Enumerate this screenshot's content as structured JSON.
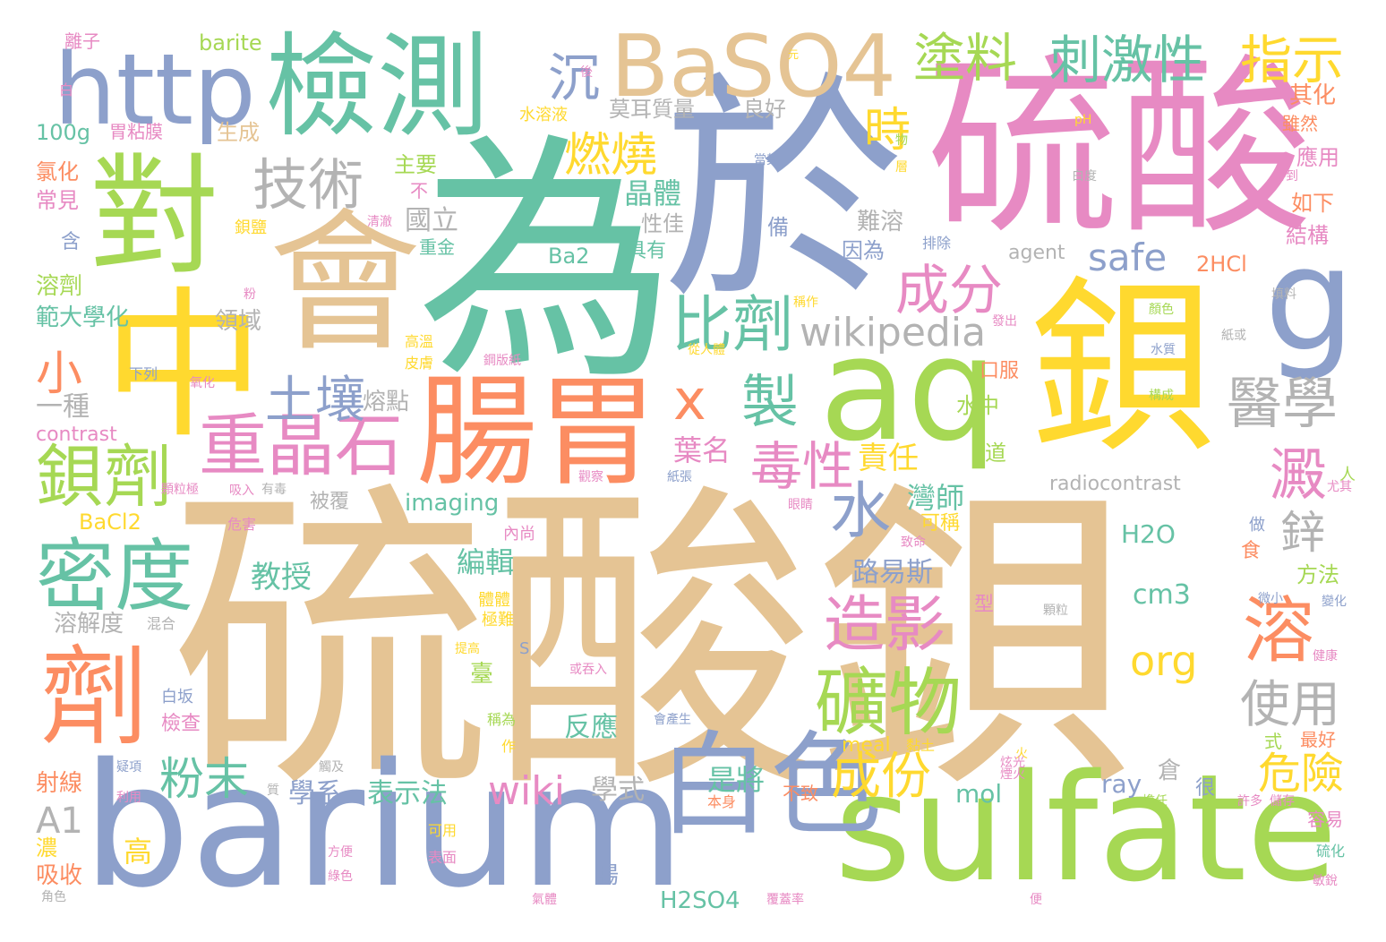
{
  "palette": {
    "tan": "#e5c494",
    "blue": "#8da0cb",
    "teal": "#66c2a5",
    "pink": "#e78ac3",
    "orange": "#fc8d62",
    "green": "#a6d854",
    "yellow": "#ffd92f",
    "gray": "#b3b3b3"
  },
  "words": [
    {
      "text": "硫酸鋇",
      "color": "tan"
    },
    {
      "text": "為",
      "color": "teal"
    },
    {
      "text": "於",
      "color": "blue"
    },
    {
      "text": "硫酸",
      "color": "pink"
    },
    {
      "text": "中",
      "color": "yellow"
    },
    {
      "text": "會",
      "color": "tan"
    },
    {
      "text": "對",
      "color": "green"
    },
    {
      "text": "鋇",
      "color": "yellow"
    },
    {
      "text": "barium",
      "color": "blue"
    },
    {
      "text": "sulfate",
      "color": "green"
    },
    {
      "text": "aq",
      "color": "green"
    },
    {
      "text": "g",
      "color": "blue"
    },
    {
      "text": "腸胃",
      "color": "orange"
    },
    {
      "text": "http",
      "color": "blue"
    },
    {
      "text": "檢測",
      "color": "teal"
    },
    {
      "text": "BaSO4",
      "color": "tan"
    },
    {
      "text": "白色",
      "color": "blue"
    },
    {
      "text": "劑",
      "color": "orange"
    },
    {
      "text": "密度",
      "color": "teal"
    },
    {
      "text": "技術",
      "color": "gray"
    },
    {
      "text": "重晶石",
      "color": "pink"
    },
    {
      "text": "鋇劑",
      "color": "green"
    },
    {
      "text": "土壤",
      "color": "blue"
    },
    {
      "text": "比劑",
      "color": "teal"
    },
    {
      "text": "沉",
      "color": "blue"
    },
    {
      "text": "塗料",
      "color": "green"
    },
    {
      "text": "刺激性",
      "color": "teal"
    },
    {
      "text": "指示",
      "color": "yellow"
    },
    {
      "text": "成分",
      "color": "pink"
    },
    {
      "text": "燃燒",
      "color": "yellow"
    },
    {
      "text": "時",
      "color": "yellow"
    },
    {
      "text": "醫學",
      "color": "gray"
    },
    {
      "text": "製",
      "color": "teal"
    },
    {
      "text": "x",
      "color": "orange"
    },
    {
      "text": "wikipedia",
      "color": "gray"
    },
    {
      "text": "毒性",
      "color": "pink"
    },
    {
      "text": "水",
      "color": "blue"
    },
    {
      "text": "造影",
      "color": "pink"
    },
    {
      "text": "礦物",
      "color": "green"
    },
    {
      "text": "澱",
      "color": "pink"
    },
    {
      "text": "溶",
      "color": "orange"
    },
    {
      "text": "鋅",
      "color": "gray"
    },
    {
      "text": "使用",
      "color": "gray"
    },
    {
      "text": "粉末",
      "color": "teal"
    },
    {
      "text": "成份",
      "color": "yellow"
    },
    {
      "text": "危險",
      "color": "yellow"
    },
    {
      "text": "wiki",
      "color": "pink"
    },
    {
      "text": "safe",
      "color": "blue"
    },
    {
      "text": "org",
      "color": "yellow"
    },
    {
      "text": "小",
      "color": "orange"
    },
    {
      "text": "晶體",
      "color": "teal"
    },
    {
      "text": "國立",
      "color": "gray"
    },
    {
      "text": "責任",
      "color": "yellow"
    },
    {
      "text": "葉名",
      "color": "pink"
    },
    {
      "text": "灣師",
      "color": "teal"
    },
    {
      "text": "教授",
      "color": "teal"
    },
    {
      "text": "編輯",
      "color": "teal"
    },
    {
      "text": "路易斯",
      "color": "blue"
    },
    {
      "text": "是將",
      "color": "teal"
    },
    {
      "text": "學式",
      "color": "gray"
    },
    {
      "text": "學系",
      "color": "blue"
    },
    {
      "text": "表示法",
      "color": "teal"
    },
    {
      "text": "反應",
      "color": "teal"
    },
    {
      "text": "cm3",
      "color": "teal"
    },
    {
      "text": "H2O",
      "color": "teal"
    },
    {
      "text": "radiocontrast",
      "color": "gray"
    },
    {
      "text": "imaging",
      "color": "teal"
    },
    {
      "text": "BaCl2",
      "color": "yellow"
    },
    {
      "text": "H2SO4",
      "color": "teal"
    },
    {
      "text": "A1",
      "color": "gray"
    },
    {
      "text": "ray",
      "color": "blue"
    },
    {
      "text": "mol",
      "color": "teal"
    },
    {
      "text": "meal",
      "color": "yellow"
    },
    {
      "text": "contrast",
      "color": "pink"
    },
    {
      "text": "2HCl",
      "color": "orange"
    },
    {
      "text": "agent",
      "color": "gray"
    },
    {
      "text": "Ba2",
      "color": "teal"
    },
    {
      "text": "100g",
      "color": "teal"
    },
    {
      "text": "barite",
      "color": "green"
    },
    {
      "text": "範大學化",
      "color": "teal"
    },
    {
      "text": "溶解度",
      "color": "gray"
    },
    {
      "text": "一種",
      "color": "gray"
    },
    {
      "text": "熔點",
      "color": "gray"
    },
    {
      "text": "領域",
      "color": "gray"
    },
    {
      "text": "良好",
      "color": "gray"
    },
    {
      "text": "莫耳質量",
      "color": "gray"
    },
    {
      "text": "生成",
      "color": "tan"
    },
    {
      "text": "主要",
      "color": "green"
    },
    {
      "text": "難溶",
      "color": "gray"
    },
    {
      "text": "因為",
      "color": "blue"
    },
    {
      "text": "性佳",
      "color": "gray"
    },
    {
      "text": "具有",
      "color": "teal"
    },
    {
      "text": "重金",
      "color": "teal"
    },
    {
      "text": "其化",
      "color": "orange"
    },
    {
      "text": "應用",
      "color": "pink"
    },
    {
      "text": "如下",
      "color": "orange"
    },
    {
      "text": "結構",
      "color": "pink"
    },
    {
      "text": "雖然",
      "color": "orange"
    },
    {
      "text": "離子",
      "color": "pink"
    },
    {
      "text": "氯化",
      "color": "orange"
    },
    {
      "text": "常見",
      "color": "pink"
    },
    {
      "text": "溶劑",
      "color": "green"
    },
    {
      "text": "射線",
      "color": "orange"
    },
    {
      "text": "吸收",
      "color": "orange"
    },
    {
      "text": "濃",
      "color": "yellow"
    },
    {
      "text": "高",
      "color": "yellow"
    },
    {
      "text": "腸",
      "color": "blue"
    },
    {
      "text": "胃粘膜",
      "color": "pink"
    },
    {
      "text": "水溶液",
      "color": "yellow"
    },
    {
      "text": "不",
      "color": "pink"
    },
    {
      "text": "被覆",
      "color": "gray"
    },
    {
      "text": "可稱",
      "color": "yellow"
    },
    {
      "text": "水中",
      "color": "green"
    },
    {
      "text": "口服",
      "color": "orange"
    },
    {
      "text": "道",
      "color": "green"
    },
    {
      "text": "備",
      "color": "blue"
    },
    {
      "text": "方法",
      "color": "green"
    },
    {
      "text": "最好",
      "color": "orange"
    },
    {
      "text": "容易",
      "color": "pink"
    },
    {
      "text": "臺",
      "color": "green"
    },
    {
      "text": "檢查",
      "color": "pink"
    },
    {
      "text": "白坂",
      "color": "blue"
    },
    {
      "text": "很",
      "color": "blue"
    },
    {
      "text": "不致",
      "color": "orange"
    },
    {
      "text": "倉",
      "color": "gray"
    },
    {
      "text": "式",
      "color": "green"
    },
    {
      "text": "型",
      "color": "pink"
    },
    {
      "text": "食",
      "color": "orange"
    },
    {
      "text": "含",
      "color": "blue"
    },
    {
      "text": "白",
      "color": "pink"
    },
    {
      "text": "S",
      "color": "blue"
    },
    {
      "text": "人",
      "color": "green"
    },
    {
      "text": "做",
      "color": "blue"
    },
    {
      "text": "硫化",
      "color": "teal"
    },
    {
      "text": "可用",
      "color": "yellow"
    },
    {
      "text": "黏土",
      "color": "yellow"
    },
    {
      "text": "稱為",
      "color": "green"
    },
    {
      "text": "本身",
      "color": "orange"
    },
    {
      "text": "清澈",
      "color": "pink"
    },
    {
      "text": "排除",
      "color": "blue"
    },
    {
      "text": "稱作",
      "color": "yellow"
    },
    {
      "text": "發出",
      "color": "pink"
    },
    {
      "text": "紙或",
      "color": "gray"
    },
    {
      "text": "水質",
      "color": "blue"
    },
    {
      "text": "顏色",
      "color": "green"
    },
    {
      "text": "構成",
      "color": "green"
    },
    {
      "text": "填料",
      "color": "gray"
    },
    {
      "text": "pH",
      "color": "yellow"
    },
    {
      "text": "得到",
      "color": "pink"
    },
    {
      "text": "白度",
      "color": "gray"
    },
    {
      "text": "極難",
      "color": "yellow"
    },
    {
      "text": "提高",
      "color": "yellow"
    },
    {
      "text": "或吞入",
      "color": "pink"
    },
    {
      "text": "健康",
      "color": "pink"
    },
    {
      "text": "變化",
      "color": "blue"
    },
    {
      "text": "微小",
      "color": "blue"
    },
    {
      "text": "顆粒",
      "color": "gray"
    },
    {
      "text": "危害",
      "color": "pink"
    },
    {
      "text": "致命",
      "color": "pink"
    },
    {
      "text": "眼睛",
      "color": "pink"
    },
    {
      "text": "吸入",
      "color": "pink"
    },
    {
      "text": "有毒",
      "color": "gray"
    },
    {
      "text": "顆粒極",
      "color": "pink"
    },
    {
      "text": "觀察",
      "color": "pink"
    },
    {
      "text": "紙張",
      "color": "blue"
    },
    {
      "text": "從人體",
      "color": "yellow"
    },
    {
      "text": "高溫",
      "color": "yellow"
    },
    {
      "text": "皮膚",
      "color": "yellow"
    },
    {
      "text": "鋇鹽",
      "color": "yellow"
    },
    {
      "text": "鋼版紙",
      "color": "pink"
    },
    {
      "text": "內尚",
      "color": "pink"
    },
    {
      "text": "下列",
      "color": "blue"
    },
    {
      "text": "氧化",
      "color": "pink"
    },
    {
      "text": "體體",
      "color": "yellow"
    },
    {
      "text": "混合",
      "color": "gray"
    },
    {
      "text": "會產生",
      "color": "blue"
    },
    {
      "text": "火",
      "color": "yellow"
    },
    {
      "text": "炫光",
      "color": "pink"
    },
    {
      "text": "擔任",
      "color": "green"
    },
    {
      "text": "許多",
      "color": "pink"
    },
    {
      "text": "儲存",
      "color": "pink"
    },
    {
      "text": "覆蓋率",
      "color": "pink"
    },
    {
      "text": "氣體",
      "color": "pink"
    },
    {
      "text": "便",
      "color": "pink"
    },
    {
      "text": "疑項",
      "color": "blue"
    },
    {
      "text": "利用",
      "color": "pink"
    },
    {
      "text": "觸及",
      "color": "gray"
    },
    {
      "text": "質",
      "color": "gray"
    },
    {
      "text": "表面",
      "color": "pink"
    },
    {
      "text": "方便",
      "color": "pink"
    },
    {
      "text": "綠色",
      "color": "pink"
    },
    {
      "text": "角色",
      "color": "gray"
    },
    {
      "text": "作",
      "color": "yellow"
    },
    {
      "text": "後",
      "color": "pink"
    },
    {
      "text": "元",
      "color": "yellow"
    },
    {
      "text": "當其",
      "color": "blue"
    },
    {
      "text": "層",
      "color": "yellow"
    },
    {
      "text": "物",
      "color": "green"
    },
    {
      "text": "粉",
      "color": "pink"
    },
    {
      "text": "尤其",
      "color": "pink"
    },
    {
      "text": "煙火",
      "color": "pink"
    },
    {
      "text": "敏銳",
      "color": "pink"
    }
  ]
}
